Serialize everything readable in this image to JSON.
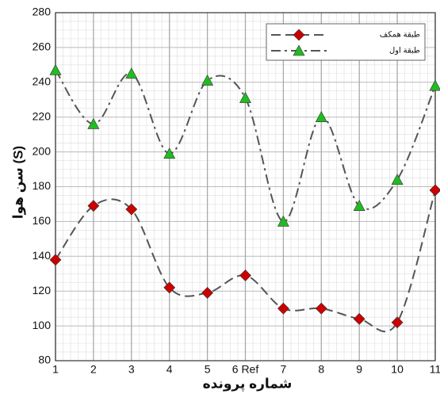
{
  "chart_data": {
    "type": "line",
    "x": [
      1,
      2,
      3,
      4,
      5,
      6,
      7,
      8,
      9,
      10,
      11
    ],
    "xlim": [
      1,
      11
    ],
    "xticks": [
      1,
      2,
      3,
      4,
      5,
      {
        "value": 6,
        "label": "6 Ref"
      },
      7,
      8,
      9,
      10,
      11
    ],
    "ylim": [
      80,
      280
    ],
    "yticks": [
      80,
      100,
      120,
      140,
      160,
      180,
      200,
      220,
      240,
      260,
      280
    ],
    "xlabel": "شماره پرونده",
    "ylabel": "سن هوا (S)",
    "grid": true,
    "line_color": "#555555",
    "legend": "top-right",
    "series": [
      {
        "name": "طبقة همکف",
        "color": "#cc0000",
        "marker": "diamond",
        "dash": "dash",
        "values": [
          138,
          169,
          167,
          122,
          119,
          129,
          110,
          110,
          104,
          102,
          178
        ]
      },
      {
        "name": "طبقة اول",
        "color": "#22bb22",
        "marker": "triangle",
        "dash": "dashdot",
        "values": [
          247,
          216,
          245,
          199,
          241,
          231,
          160,
          220,
          169,
          184,
          238
        ]
      }
    ]
  }
}
